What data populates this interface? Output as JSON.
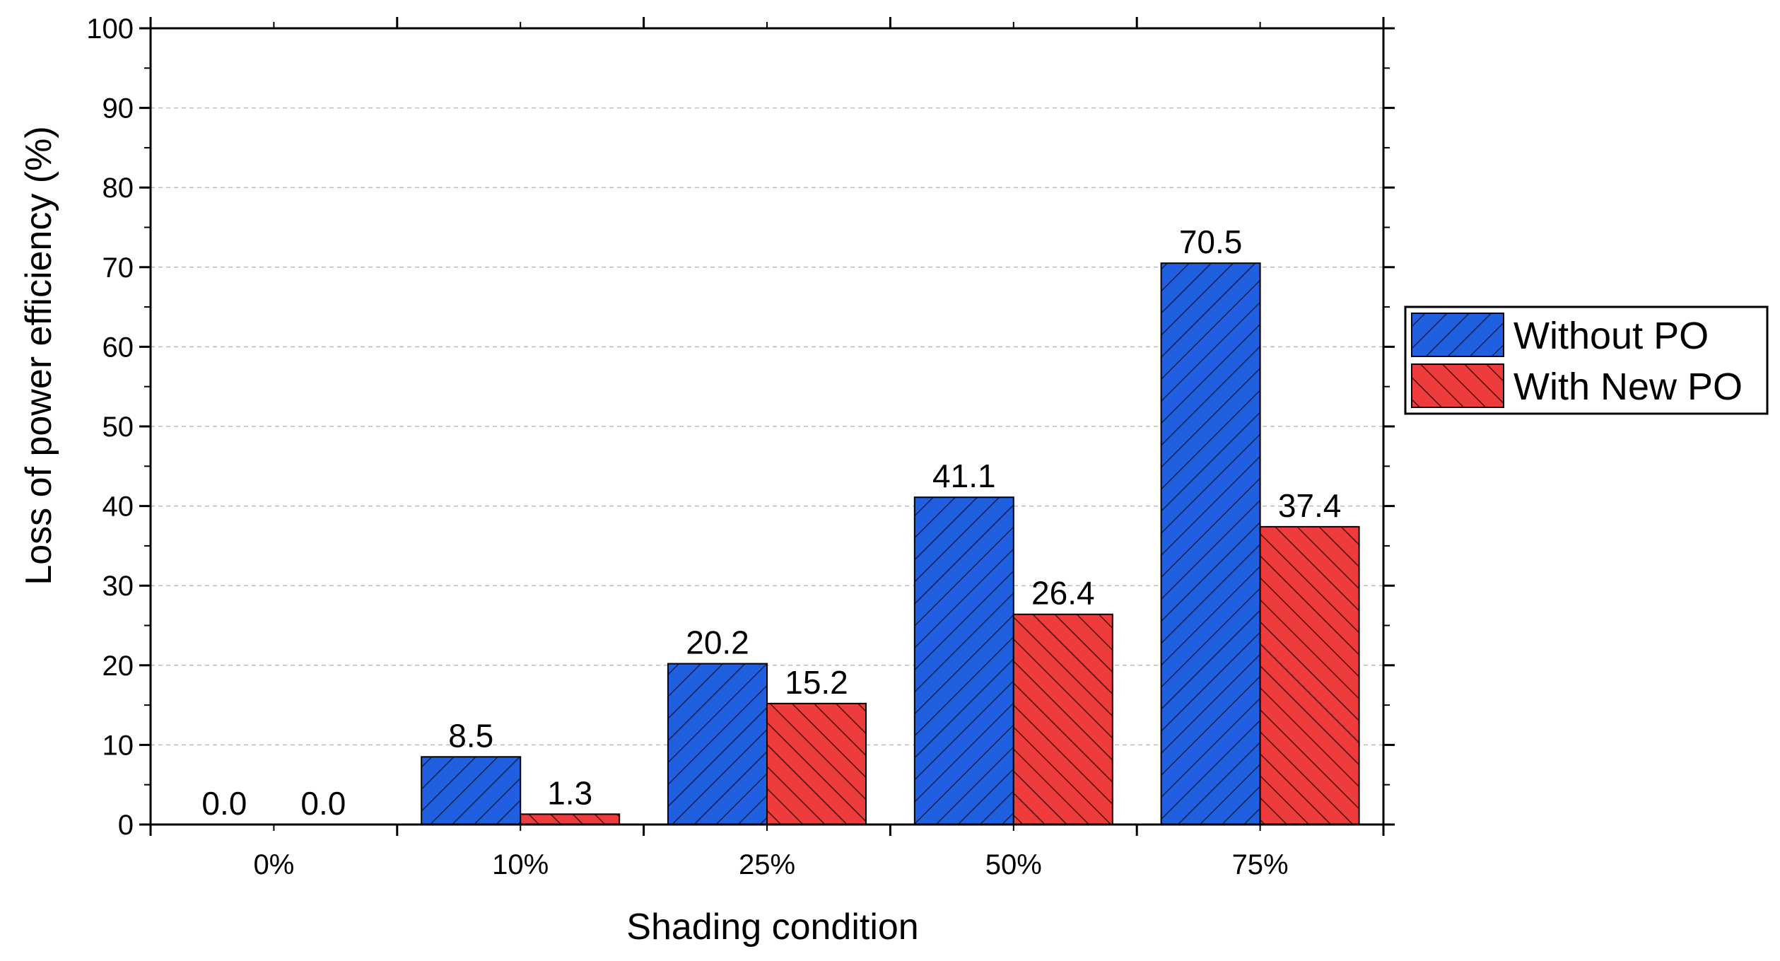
{
  "chart_data": {
    "type": "bar",
    "title": "",
    "xlabel": "Shading condition",
    "ylabel": "Loss of power efficiency (%)",
    "categories": [
      "0%",
      "10%",
      "25%",
      "50%",
      "75%"
    ],
    "series": [
      {
        "name": "Without PO",
        "values": [
          0.0,
          8.5,
          20.2,
          41.1,
          70.5
        ],
        "labels": [
          "0.0",
          "8.5",
          "20.2",
          "41.1",
          "70.5"
        ],
        "color": "#1f5fe0",
        "hatch": "forward-diagonal"
      },
      {
        "name": "With New PO",
        "values": [
          0.0,
          1.3,
          15.2,
          26.4,
          37.4
        ],
        "labels": [
          "0.0",
          "1.3",
          "15.2",
          "26.4",
          "37.4"
        ],
        "color": "#ee3b3b",
        "hatch": "backward-diagonal"
      }
    ],
    "ylim": [
      0,
      100
    ],
    "yticks": [
      0,
      10,
      20,
      30,
      40,
      50,
      60,
      70,
      80,
      90,
      100
    ],
    "ytick_labels": [
      "0",
      "10",
      "20",
      "30",
      "40",
      "50",
      "60",
      "70",
      "80",
      "90",
      "100"
    ],
    "grid": true,
    "legend_position": "right"
  }
}
